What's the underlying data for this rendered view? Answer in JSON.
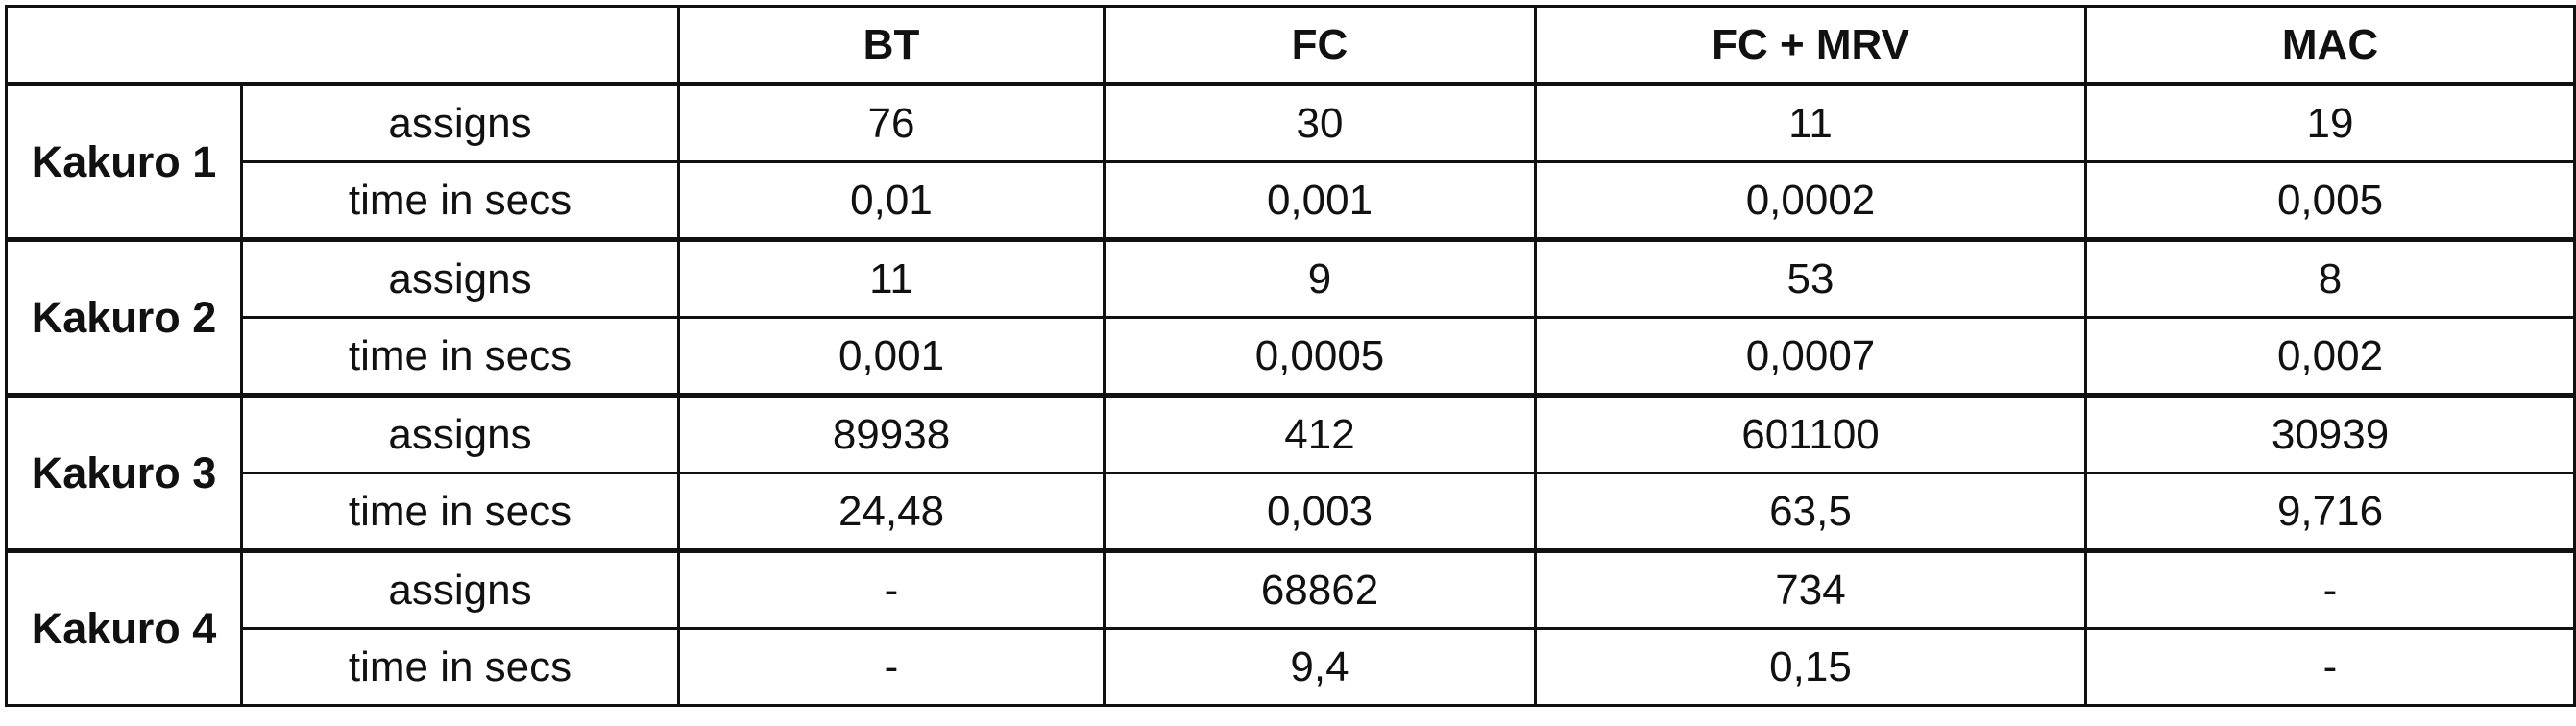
{
  "header": {
    "corner": "",
    "columns": [
      "BT",
      "FC",
      "FC + MRV",
      "MAC"
    ]
  },
  "groups": [
    {
      "label": "Kakuro 1",
      "rows": [
        {
          "metric": "assigns",
          "values": [
            "76",
            "30",
            "11",
            "19"
          ]
        },
        {
          "metric": "time in secs",
          "values": [
            "0,01",
            "0,001",
            "0,0002",
            "0,005"
          ]
        }
      ]
    },
    {
      "label": "Kakuro 2",
      "rows": [
        {
          "metric": "assigns",
          "values": [
            "11",
            "9",
            "53",
            "8"
          ]
        },
        {
          "metric": "time in secs",
          "values": [
            "0,001",
            "0,0005",
            "0,0007",
            "0,002"
          ]
        }
      ]
    },
    {
      "label": "Kakuro 3",
      "rows": [
        {
          "metric": "assigns",
          "values": [
            "89938",
            "412",
            "601100",
            "30939"
          ]
        },
        {
          "metric": "time in secs",
          "values": [
            "24,48",
            "0,003",
            "63,5",
            "9,716"
          ]
        }
      ]
    },
    {
      "label": "Kakuro 4",
      "rows": [
        {
          "metric": "assigns",
          "values": [
            "-",
            "68862",
            "734",
            "-"
          ]
        },
        {
          "metric": "time in secs",
          "values": [
            "-",
            "9,4",
            "0,15",
            "-"
          ]
        }
      ]
    }
  ]
}
